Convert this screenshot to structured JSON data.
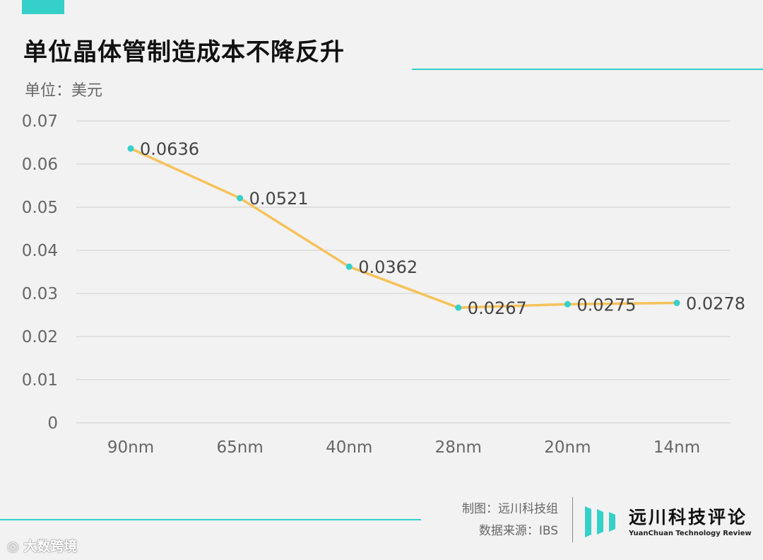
{
  "header": {
    "title": "单位晶体管制造成本不降反升",
    "unit_label": "单位：美元"
  },
  "chart_data": {
    "type": "line",
    "title": "单位晶体管制造成本不降反升",
    "ylabel": "单位：美元",
    "xlabel": "",
    "categories": [
      "90nm",
      "65nm",
      "40nm",
      "28nm",
      "20nm",
      "14nm"
    ],
    "series": [
      {
        "values": [
          0.0636,
          0.0521,
          0.0362,
          0.0267,
          0.0275,
          0.0278
        ]
      }
    ],
    "data_labels": [
      "0.0636",
      "0.0521",
      "0.0362",
      "0.0267",
      "0.0275",
      "0.0278"
    ],
    "ylim": [
      0,
      0.07
    ],
    "yticks": [
      "0",
      "0.01",
      "0.02",
      "0.03",
      "0.04",
      "0.05",
      "0.06",
      "0.07"
    ],
    "grid": true,
    "legend": "none",
    "colors": {
      "line": "#f5c25a",
      "marker": "#35d0c9",
      "grid": "#d9d9d9"
    }
  },
  "footer": {
    "credit_maker": "制图：远川科技组",
    "credit_source": "数据来源：IBS",
    "brand_cn": "远川科技评论",
    "brand_en": "YuanChuan Technology Review",
    "watermark": "大数跨境"
  },
  "theme": {
    "accent": "#35d0c9"
  }
}
